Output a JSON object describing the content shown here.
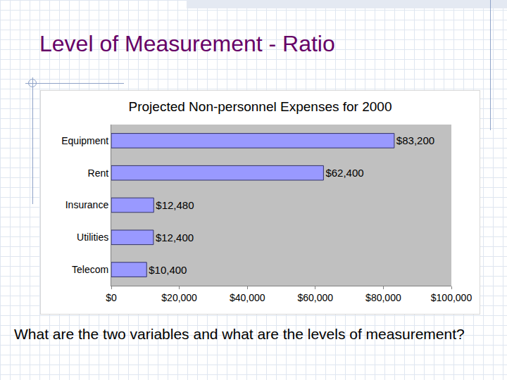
{
  "slide": {
    "title": "Level of Measurement - Ratio",
    "question": "What are the two variables and what are the levels of measurement?"
  },
  "chart_data": {
    "type": "bar",
    "orientation": "horizontal",
    "title": "Projected Non-personnel Expenses for 2000",
    "categories": [
      "Equipment",
      "Rent",
      "Insurance",
      "Utilities",
      "Telecom"
    ],
    "values": [
      83200,
      62400,
      12480,
      12400,
      10400
    ],
    "value_labels": [
      "$83,200",
      "$62,400",
      "$12,480",
      "$12,400",
      "$10,400"
    ],
    "data_labels": true,
    "color": "#9999ff",
    "xlim": [
      0,
      100000
    ],
    "xticks": [
      {
        "value": 0,
        "label": "$0"
      },
      {
        "value": 20000,
        "label": "$20,000"
      },
      {
        "value": 40000,
        "label": "$40,000"
      },
      {
        "value": 60000,
        "label": "$60,000"
      },
      {
        "value": 80000,
        "label": "$80,000"
      },
      {
        "value": 100000,
        "label": "$100,000"
      }
    ],
    "grid": false
  }
}
